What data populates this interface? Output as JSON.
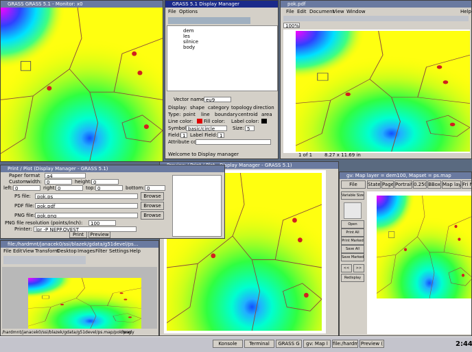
{
  "monitor": {
    "title": "GRASS GRASS 5.1 - Monitor: x0"
  },
  "display_manager": {
    "title": "GRASS 5.1 Display Manager",
    "menu": [
      "File",
      "Options"
    ],
    "layers": [
      "dem",
      "les",
      "silnice",
      "body"
    ],
    "vector_name_label": "Vector name:",
    "vector_name": "eu9",
    "display_label": "Display:",
    "display_options": [
      "shape",
      "category",
      "topology",
      "direction"
    ],
    "type_label": "Type:",
    "type_options": [
      "point",
      "line",
      "boundary",
      "centroid",
      "area"
    ],
    "line_color": "Line color:",
    "fill_color": "Fill color:",
    "label_color": "Label color:",
    "symbol_label": "Symbol:",
    "symbol": "basic/circle",
    "size_label": "Size:",
    "size": "5",
    "field_label": "Field:",
    "field": "1",
    "label_field_label": "Label Field:",
    "label_field": "1",
    "attribute_label": "Attribute col:",
    "status": "Welcome to Display manager"
  },
  "pdf": {
    "title": "pok.pdf",
    "menu": [
      "File",
      "Edit",
      "Document",
      "View",
      "Window",
      "Help"
    ],
    "zoom": "100%",
    "page": "1 of 1",
    "size": "8.27 x 11.69 in"
  },
  "print": {
    "title": "Print / Plot (Display Manager - GRASS 5.1)",
    "paper_label": "Paper format",
    "paper": "a4",
    "custom_label": "Custom",
    "width_label": "width:",
    "width": "0",
    "height_label": "height:",
    "height": "0",
    "left_label": "left:",
    "left": "0",
    "right_label": "right:",
    "right": "0",
    "top_label": "top:",
    "top": "0",
    "bottom_label": "bottom:",
    "bottom": "0",
    "files": [
      {
        "label": "PS file:",
        "value": "pok.ps",
        "button": "Browse"
      },
      {
        "label": "PDF file:",
        "value": "pok.pdf",
        "button": "Browse"
      },
      {
        "label": "PNG file:",
        "value": "pok.png",
        "button": "Browse"
      }
    ],
    "resolution_label": "PNG file resolution (points/inch):",
    "resolution": "100",
    "printer_label": "Printer:",
    "printer": "lpr -P NEPP.OVEST",
    "buttons": [
      "Print",
      "Preview"
    ]
  },
  "preview": {
    "title": "Preview / Print / Plot - Display Manager - GRASS 5.1)"
  },
  "konqueror": {
    "title": "file:/hardmnt/janacek0/ssi/blazek/gdata/g51devel/ps...",
    "menu": [
      "File",
      "Edit",
      "View",
      "Transform",
      "Desktop",
      "Images",
      "Filter",
      "Settings",
      "Help"
    ],
    "path": "/hardmnt/janacek0/ssi/blazek/gdata/g51devel/ps.map/pok.png",
    "status": "Ready"
  },
  "gv": {
    "title": "gv: Map layer = dem100, Mapset = ps.map",
    "buttons": [
      "File",
      "State",
      "Page",
      "Portrait",
      "0.250",
      "BBox",
      "Map layer",
      "Fri M"
    ],
    "side_buttons": [
      "Variable Size",
      "Open",
      "Print All",
      "Print Marked",
      "Save All",
      "Save Marked",
      "<<",
      ">>",
      "Redisplay"
    ]
  },
  "taskbar": {
    "tasks": [
      "Konsole",
      "Terminal",
      "GRASS G",
      "gv: Map l",
      "file:/hardm",
      "Preview ("
    ],
    "clock": "2:44"
  }
}
